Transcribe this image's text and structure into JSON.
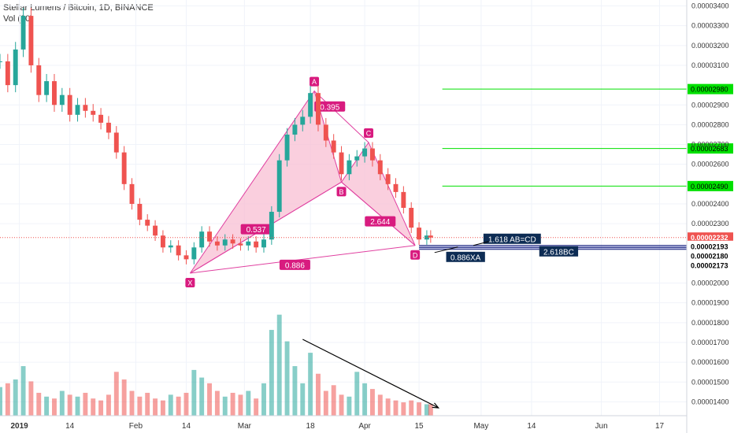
{
  "header": {
    "title": "Stellar Lumens / Bitcoin, 1D, BINANCE",
    "volume_label": "Vol (20)"
  },
  "colors": {
    "up": "#26a69a",
    "down": "#ef5350",
    "pattern_fill": "#f8bbd0",
    "pattern_line": "#e040a0",
    "label_bg": "#d81b7f",
    "target_line": "#00e000",
    "navy_label": "#0d2c54",
    "current_price": "#ef5350"
  },
  "chart_data": {
    "type": "candlestick",
    "title": "Stellar Lumens / Bitcoin, 1D, BINANCE",
    "price_axis": {
      "min": 1.33e-05,
      "max": 3.43e-05,
      "ticks": [
        3.4e-05,
        3.3e-05,
        3.2e-05,
        3.1e-05,
        2.9e-05,
        2.8e-05,
        2.7e-05,
        2.6e-05,
        2.4e-05,
        2.3e-05,
        2e-05,
        1.9e-05,
        1.8e-05,
        1.7e-05,
        1.6e-05,
        1.5e-05,
        1.4e-05
      ],
      "tick_labels": [
        "0.00003400",
        "0.00003300",
        "0.00003200",
        "0.00003100",
        "0.00002900",
        "0.00002800",
        "0.00002700",
        "0.00002600",
        "0.00002400",
        "0.00002300",
        "0.00002000",
        "0.00001900",
        "0.00001800",
        "0.00001700",
        "0.00001600",
        "0.00001500",
        "0.00001400"
      ]
    },
    "time_axis": {
      "labels": [
        {
          "label": "2019",
          "day": 5
        },
        {
          "label": "14",
          "day": 18
        },
        {
          "label": "Feb",
          "day": 35
        },
        {
          "label": "14",
          "day": 48
        },
        {
          "label": "Mar",
          "day": 63
        },
        {
          "label": "18",
          "day": 80
        },
        {
          "label": "Apr",
          "day": 94
        },
        {
          "label": "15",
          "day": 108
        },
        {
          "label": "May",
          "day": 124
        },
        {
          "label": "14",
          "day": 137
        },
        {
          "label": "Jun",
          "day": 155
        },
        {
          "label": "17",
          "day": 170
        }
      ],
      "day_range": [
        0,
        177
      ]
    },
    "series": [
      {
        "name": "price",
        "points": [
          {
            "day": 0,
            "close": 3.12e-05
          },
          {
            "day": 2,
            "close": 3e-05
          },
          {
            "day": 4,
            "close": 3.18e-05
          },
          {
            "day": 6,
            "close": 3.35e-05
          },
          {
            "day": 8,
            "close": 3.1e-05
          },
          {
            "day": 10,
            "close": 2.95e-05
          },
          {
            "day": 12,
            "close": 3.02e-05
          },
          {
            "day": 14,
            "close": 2.9e-05
          },
          {
            "day": 16,
            "close": 2.95e-05
          },
          {
            "day": 18,
            "close": 2.85e-05
          },
          {
            "day": 20,
            "close": 2.9e-05
          },
          {
            "day": 22,
            "close": 2.87e-05
          },
          {
            "day": 24,
            "close": 2.85e-05
          },
          {
            "day": 26,
            "close": 2.81e-05
          },
          {
            "day": 28,
            "close": 2.76e-05
          },
          {
            "day": 30,
            "close": 2.66e-05
          },
          {
            "day": 32,
            "close": 2.5e-05
          },
          {
            "day": 34,
            "close": 2.4e-05
          },
          {
            "day": 36,
            "close": 2.32e-05
          },
          {
            "day": 38,
            "close": 2.29e-05
          },
          {
            "day": 40,
            "close": 2.24e-05
          },
          {
            "day": 42,
            "close": 2.18e-05
          },
          {
            "day": 44,
            "close": 2.19e-05
          },
          {
            "day": 46,
            "close": 2.14e-05
          },
          {
            "day": 48,
            "close": 2.12e-05
          },
          {
            "day": 50,
            "close": 2.18e-05
          },
          {
            "day": 52,
            "close": 2.26e-05
          },
          {
            "day": 54,
            "close": 2.21e-05
          },
          {
            "day": 56,
            "close": 2.19e-05
          },
          {
            "day": 58,
            "close": 2.22e-05
          },
          {
            "day": 60,
            "close": 2.2e-05
          },
          {
            "day": 62,
            "close": 2.19e-05
          },
          {
            "day": 64,
            "close": 2.21e-05
          },
          {
            "day": 66,
            "close": 2.18e-05
          },
          {
            "day": 68,
            "close": 2.22e-05
          },
          {
            "day": 70,
            "close": 2.36e-05
          },
          {
            "day": 72,
            "close": 2.62e-05
          },
          {
            "day": 74,
            "close": 2.75e-05
          },
          {
            "day": 76,
            "close": 2.8e-05
          },
          {
            "day": 78,
            "close": 2.84e-05
          },
          {
            "day": 80,
            "close": 2.96e-05
          },
          {
            "day": 82,
            "close": 2.8e-05
          },
          {
            "day": 84,
            "close": 2.72e-05
          },
          {
            "day": 86,
            "close": 2.66e-05
          },
          {
            "day": 88,
            "close": 2.55e-05
          },
          {
            "day": 90,
            "close": 2.62e-05
          },
          {
            "day": 92,
            "close": 2.64e-05
          },
          {
            "day": 94,
            "close": 2.68e-05
          },
          {
            "day": 96,
            "close": 2.62e-05
          },
          {
            "day": 98,
            "close": 2.55e-05
          },
          {
            "day": 100,
            "close": 2.5e-05
          },
          {
            "day": 102,
            "close": 2.46e-05
          },
          {
            "day": 104,
            "close": 2.38e-05
          },
          {
            "day": 106,
            "close": 2.28e-05
          },
          {
            "day": 108,
            "close": 2.22e-05
          },
          {
            "day": 110,
            "close": 2.24e-05
          },
          {
            "day": 111,
            "close": 2.23e-05
          }
        ]
      },
      {
        "name": "volume",
        "points": [
          {
            "day": 0,
            "value": 14.8
          },
          {
            "day": 2,
            "value": 15.0
          },
          {
            "day": 4,
            "value": 15.2
          },
          {
            "day": 6,
            "value": 15.9
          },
          {
            "day": 8,
            "value": 15.1
          },
          {
            "day": 10,
            "value": 14.5
          },
          {
            "day": 12,
            "value": 14.3
          },
          {
            "day": 14,
            "value": 14.2
          },
          {
            "day": 16,
            "value": 14.6
          },
          {
            "day": 18,
            "value": 14.4
          },
          {
            "day": 20,
            "value": 14.3
          },
          {
            "day": 22,
            "value": 14.5
          },
          {
            "day": 24,
            "value": 14.2
          },
          {
            "day": 26,
            "value": 14.1
          },
          {
            "day": 28,
            "value": 14.4
          },
          {
            "day": 30,
            "value": 15.6
          },
          {
            "day": 32,
            "value": 15.2
          },
          {
            "day": 34,
            "value": 14.6
          },
          {
            "day": 36,
            "value": 14.3
          },
          {
            "day": 38,
            "value": 14.5
          },
          {
            "day": 40,
            "value": 14.2
          },
          {
            "day": 42,
            "value": 14.1
          },
          {
            "day": 44,
            "value": 14.4
          },
          {
            "day": 46,
            "value": 14.3
          },
          {
            "day": 48,
            "value": 14.5
          },
          {
            "day": 50,
            "value": 15.7
          },
          {
            "day": 52,
            "value": 15.3
          },
          {
            "day": 54,
            "value": 15.0
          },
          {
            "day": 56,
            "value": 14.6
          },
          {
            "day": 58,
            "value": 14.3
          },
          {
            "day": 60,
            "value": 14.5
          },
          {
            "day": 62,
            "value": 14.4
          },
          {
            "day": 64,
            "value": 14.6
          },
          {
            "day": 66,
            "value": 14.2
          },
          {
            "day": 68,
            "value": 15.0
          },
          {
            "day": 70,
            "value": 17.8
          },
          {
            "day": 72,
            "value": 18.6
          },
          {
            "day": 74,
            "value": 17.2
          },
          {
            "day": 76,
            "value": 15.9
          },
          {
            "day": 78,
            "value": 15.0
          },
          {
            "day": 80,
            "value": 16.6
          },
          {
            "day": 82,
            "value": 15.5
          },
          {
            "day": 84,
            "value": 14.6
          },
          {
            "day": 86,
            "value": 14.9
          },
          {
            "day": 88,
            "value": 14.4
          },
          {
            "day": 90,
            "value": 14.3
          },
          {
            "day": 92,
            "value": 15.6
          },
          {
            "day": 94,
            "value": 15.0
          },
          {
            "day": 96,
            "value": 14.7
          },
          {
            "day": 98,
            "value": 14.4
          },
          {
            "day": 100,
            "value": 14.2
          },
          {
            "day": 102,
            "value": 14.1
          },
          {
            "day": 104,
            "value": 14.0
          },
          {
            "day": 106,
            "value": 14.1
          },
          {
            "day": 108,
            "value": 14.0
          },
          {
            "day": 110,
            "value": 13.9
          },
          {
            "day": 111,
            "value": 13.9
          }
        ]
      }
    ],
    "harmonic_pattern": {
      "points": [
        {
          "label": "X",
          "day": 49,
          "price": 2.05e-05
        },
        {
          "label": "A",
          "day": 81,
          "price": 2.97e-05
        },
        {
          "label": "B",
          "day": 88,
          "price": 2.51e-05
        },
        {
          "label": "C",
          "day": 95,
          "price": 2.71e-05
        },
        {
          "label": "D",
          "day": 107,
          "price": 2.19e-05
        }
      ],
      "ratios": [
        {
          "text": "0.537",
          "day": 66,
          "price": 2.27e-05
        },
        {
          "text": "0.395",
          "day": 85,
          "price": 2.89e-05
        },
        {
          "text": "2.644",
          "day": 98,
          "price": 2.31e-05
        },
        {
          "text": "0.886",
          "day": 76,
          "price": 2.09e-05
        }
      ]
    },
    "target_levels": [
      {
        "label": "0.00002980",
        "price": 2.98e-05
      },
      {
        "label": "0.00002683",
        "price": 2.68e-05
      },
      {
        "label": "0.00002490",
        "price": 2.49e-05
      }
    ],
    "projection_labels": [
      {
        "text": "1.618 AB=CD",
        "day": 132
      },
      {
        "text": "2.618BC",
        "day": 144
      },
      {
        "text": "0.886XA",
        "day": 120
      }
    ],
    "price_markers": [
      {
        "label": "0.00002232",
        "price": 2.23e-05,
        "kind": "current"
      },
      {
        "label": "0.00002193",
        "price": 2.19e-05,
        "kind": "navy"
      },
      {
        "label": "0.00002180",
        "price": 2.18e-05,
        "kind": "navy"
      },
      {
        "label": "0.00002173",
        "price": 2.17e-05,
        "kind": "navy"
      }
    ],
    "volume_trendline": {
      "start_day": 78,
      "end_day": 113
    }
  }
}
